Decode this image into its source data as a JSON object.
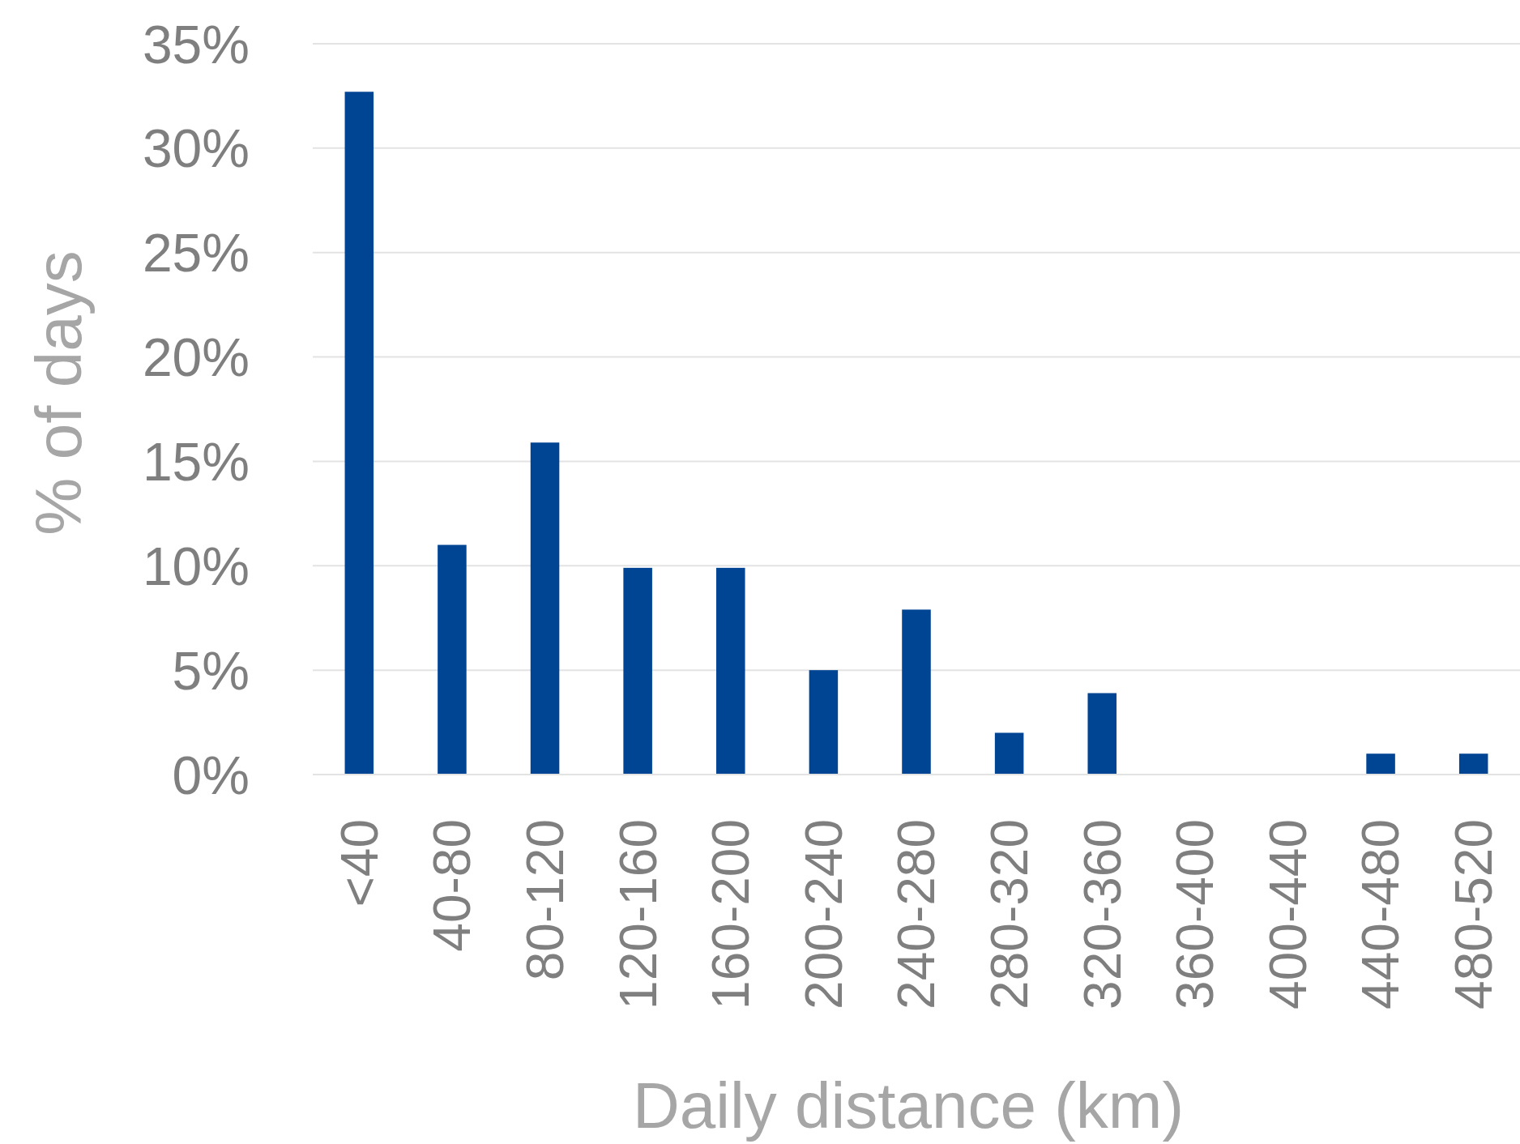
{
  "chart_data": {
    "type": "bar",
    "xlabel": "Daily distance (km)",
    "ylabel": "% of days",
    "categories": [
      "<40",
      "40-80",
      "80-120",
      "120-160",
      "160-200",
      "200-240",
      "240-280",
      "280-320",
      "320-360",
      "360-400",
      "400-440",
      "440-480",
      "480-520"
    ],
    "values": [
      32.7,
      11,
      15.9,
      9.9,
      9.9,
      5,
      7.9,
      2,
      3.9,
      0,
      0,
      1,
      1
    ],
    "color": "#004494",
    "ylim": [
      0,
      35
    ],
    "yticks": [
      {
        "value": 0,
        "label": "0%"
      },
      {
        "value": 5,
        "label": "5%"
      },
      {
        "value": 10,
        "label": "10%"
      },
      {
        "value": 15,
        "label": "15%"
      },
      {
        "value": 20,
        "label": "20%"
      },
      {
        "value": 25,
        "label": "25%"
      },
      {
        "value": 30,
        "label": "30%"
      },
      {
        "value": 35,
        "label": "35%"
      }
    ],
    "grid": "y"
  }
}
